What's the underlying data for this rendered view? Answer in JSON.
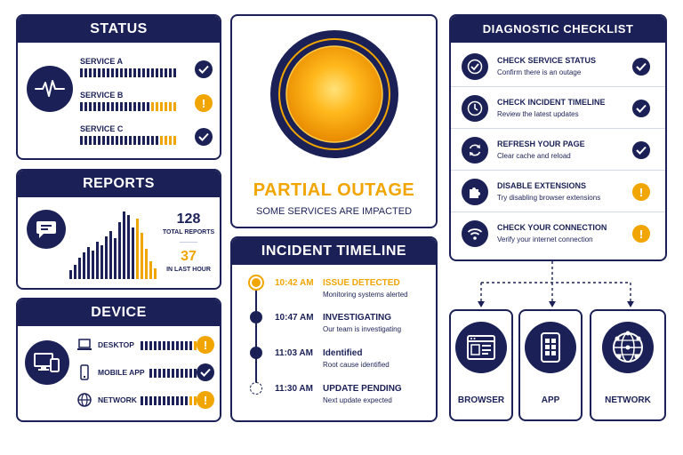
{
  "colors": {
    "navy": "#1b2157",
    "amber": "#f0a500",
    "white": "#ffffff"
  },
  "status": {
    "title": "STATUS",
    "icon": "heartbeat-icon",
    "services": [
      {
        "label": "SERVICE A",
        "state": "ok"
      },
      {
        "label": "SERVICE B",
        "state": "warning"
      },
      {
        "label": "SERVICE C",
        "state": "ok"
      }
    ]
  },
  "reports": {
    "title": "REPORTS",
    "icon": "chat-bubble-icon",
    "total_value": "128",
    "total_label": "TOTAL REPORTS",
    "hour_value": "37",
    "hour_label": "IN LAST HOUR"
  },
  "device": {
    "title": "DEVICE",
    "icon": "devices-icon",
    "items": [
      {
        "label": "DESKTOP",
        "icon": "laptop-icon",
        "state": "warning"
      },
      {
        "label": "MOBILE APP",
        "icon": "phone-icon",
        "state": "ok"
      },
      {
        "label": "NETWORK",
        "icon": "globe-icon",
        "state": "warning"
      }
    ]
  },
  "outage": {
    "title": "PARTIAL OUTAGE",
    "subtitle": "SOME SERVICES ARE IMPACTED",
    "indicator": "status-light-icon"
  },
  "timeline": {
    "title": "INCIDENT TIMELINE",
    "events": [
      {
        "time": "10:42 AM",
        "title": "ISSUE DETECTED",
        "desc": "Monitoring systems alerted",
        "state": "active"
      },
      {
        "time": "10:47 AM",
        "title": "INVESTIGATING",
        "desc": "Our team is investigating",
        "state": "done"
      },
      {
        "time": "11:03 AM",
        "title": "Identified",
        "desc": "Root cause identified",
        "state": "done"
      },
      {
        "time": "11:30 AM",
        "title": "UPDATE PENDING",
        "desc": "Next update expected",
        "state": "pending"
      }
    ]
  },
  "checklist": {
    "title": "DIAGNOSTIC CHECKLIST",
    "items": [
      {
        "title": "CHECK SERVICE STATUS",
        "desc": "Confirm there is an outage",
        "icon": "check-circle-icon",
        "state": "ok"
      },
      {
        "title": "CHECK INCIDENT TIMELINE",
        "desc": "Review the latest updates",
        "icon": "clock-icon",
        "state": "ok"
      },
      {
        "title": "REFRESH YOUR PAGE",
        "desc": "Clear cache and reload",
        "icon": "refresh-icon",
        "state": "ok"
      },
      {
        "title": "DISABLE EXTENSIONS",
        "desc": "Try disabling browser extensions",
        "icon": "puzzle-icon",
        "state": "warning"
      },
      {
        "title": "CHECK YOUR CONNECTION",
        "desc": "Verify your internet connection",
        "icon": "wifi-icon",
        "state": "warning"
      }
    ]
  },
  "targets": [
    {
      "label": "BROWSER",
      "icon": "browser-window-icon"
    },
    {
      "label": "APP",
      "icon": "smartphone-icon"
    },
    {
      "label": "NETWORK",
      "icon": "network-globe-icon"
    }
  ]
}
